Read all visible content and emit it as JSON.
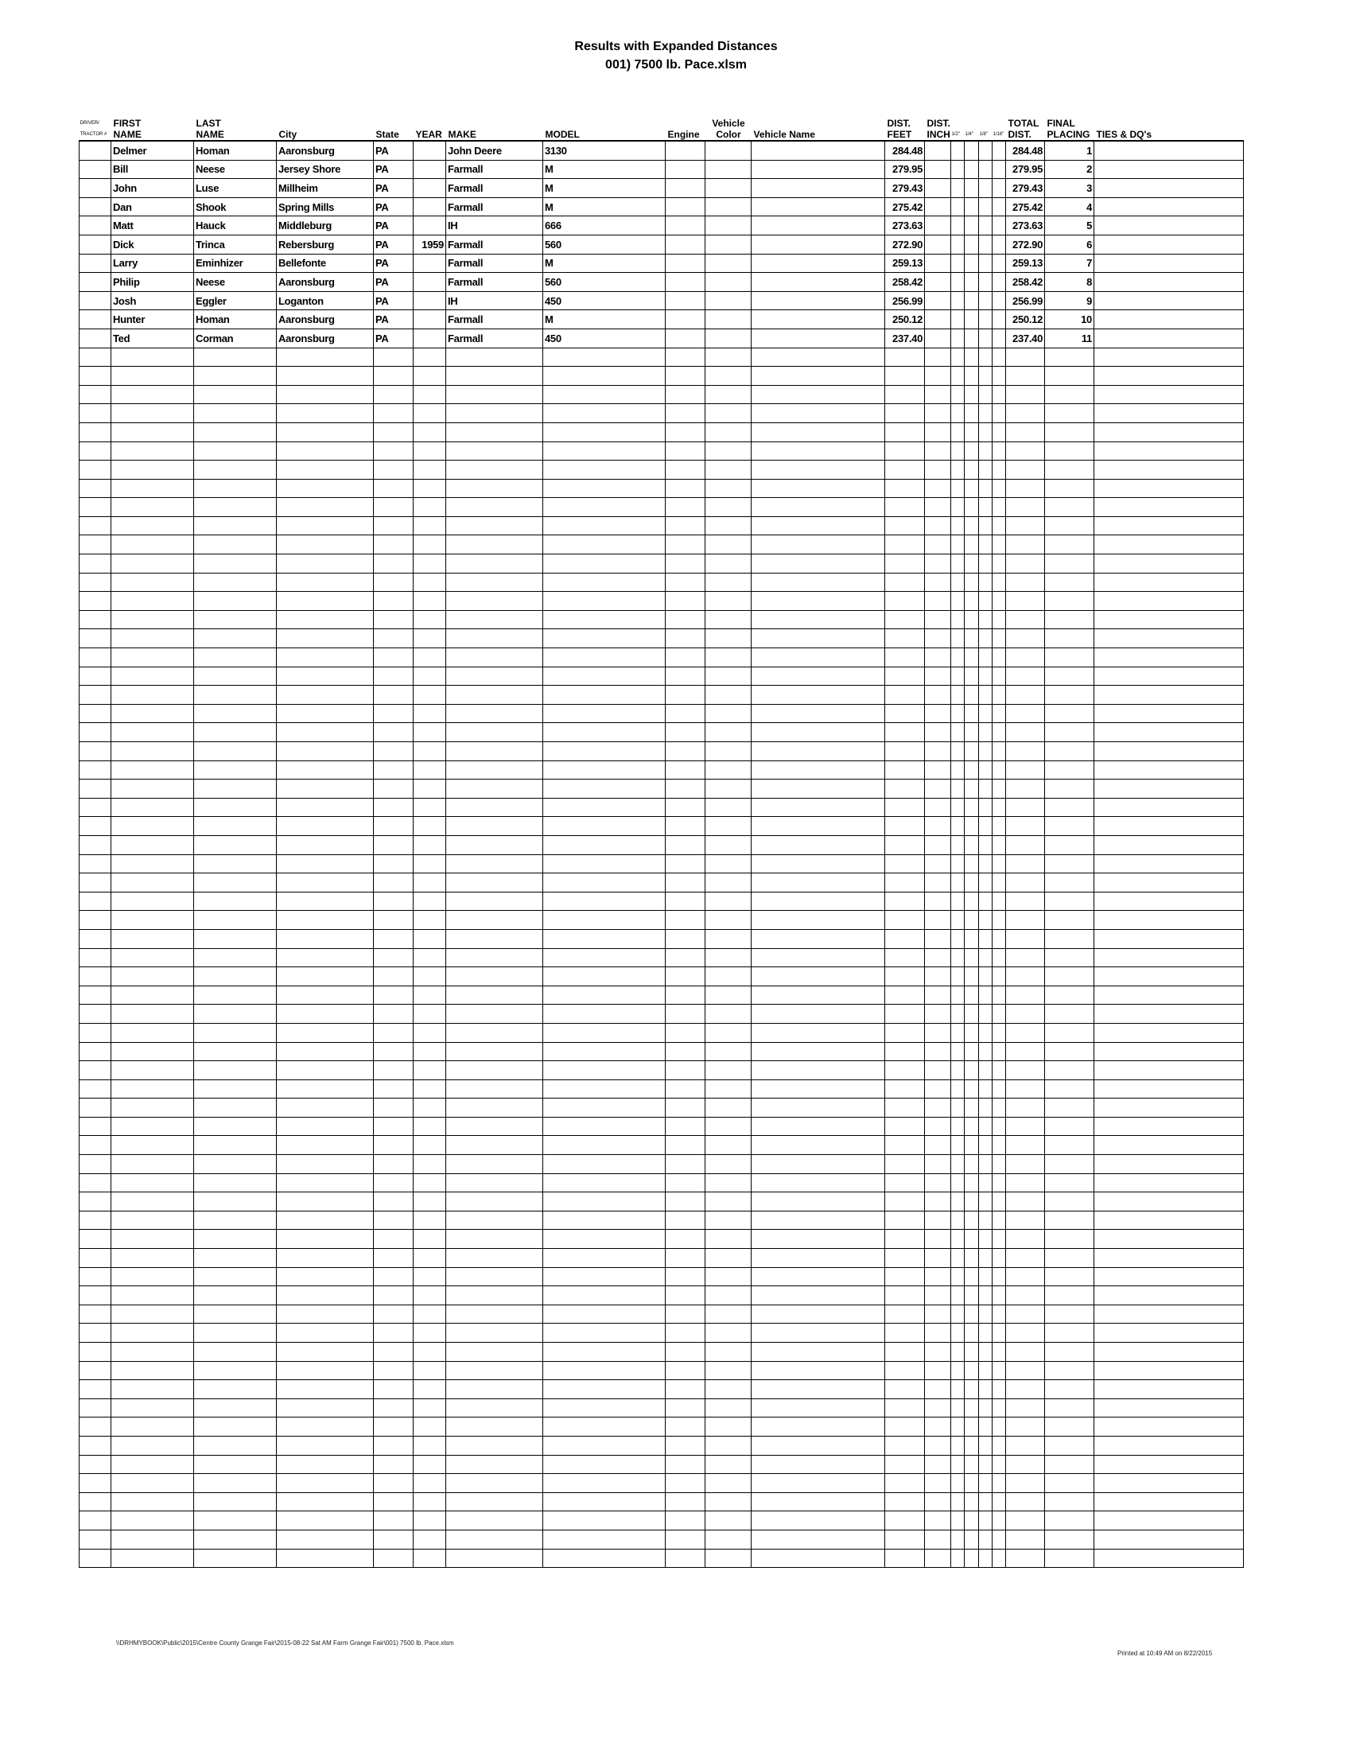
{
  "title": "Results with Expanded Distances",
  "subtitle": "001) 7500 lb. Pace.xlsm",
  "columns": [
    {
      "top": "DRIVER/",
      "bottom": "TRACTOR #",
      "tiny": true
    },
    {
      "top": "FIRST",
      "bottom": "NAME"
    },
    {
      "top": "LAST",
      "bottom": "NAME"
    },
    {
      "top": "",
      "bottom": "City"
    },
    {
      "top": "",
      "bottom": "State"
    },
    {
      "top": "",
      "bottom": "YEAR"
    },
    {
      "top": "",
      "bottom": "MAKE"
    },
    {
      "top": "",
      "bottom": "MODEL"
    },
    {
      "top": "",
      "bottom": "Engine"
    },
    {
      "top": "Vehicle",
      "bottom": "Color",
      "center": true
    },
    {
      "top": "",
      "bottom": "Vehicle Name"
    },
    {
      "top": "DIST.",
      "bottom": "FEET"
    },
    {
      "top": "DIST.",
      "bottom": "INCH"
    },
    {
      "top": "",
      "bottom": "1/2\"",
      "tiny": true
    },
    {
      "top": "",
      "bottom": "1/4\"",
      "tiny": true
    },
    {
      "top": "",
      "bottom": "1/8\"",
      "tiny": true
    },
    {
      "top": "",
      "bottom": "1/16\"",
      "tiny": true
    },
    {
      "top": "TOTAL",
      "bottom": "DIST."
    },
    {
      "top": "FINAL",
      "bottom": "PLACING"
    },
    {
      "top": "",
      "bottom": "TIES & DQ's"
    }
  ],
  "results": [
    [
      "",
      "Delmer",
      "Homan",
      "Aaronsburg",
      "PA",
      "",
      "John Deere",
      "3130",
      "",
      "",
      "",
      "284.48",
      "",
      "",
      "",
      "",
      "",
      "284.48",
      "1",
      ""
    ],
    [
      "",
      "Bill",
      "Neese",
      "Jersey Shore",
      "PA",
      "",
      "Farmall",
      "M",
      "",
      "",
      "",
      "279.95",
      "",
      "",
      "",
      "",
      "",
      "279.95",
      "2",
      ""
    ],
    [
      "",
      "John",
      "Luse",
      "Millheim",
      "PA",
      "",
      "Farmall",
      "M",
      "",
      "",
      "",
      "279.43",
      "",
      "",
      "",
      "",
      "",
      "279.43",
      "3",
      ""
    ],
    [
      "",
      "Dan",
      "Shook",
      "Spring Mills",
      "PA",
      "",
      "Farmall",
      "M",
      "",
      "",
      "",
      "275.42",
      "",
      "",
      "",
      "",
      "",
      "275.42",
      "4",
      ""
    ],
    [
      "",
      "Matt",
      "Hauck",
      "Middleburg",
      "PA",
      "",
      "IH",
      "666",
      "",
      "",
      "",
      "273.63",
      "",
      "",
      "",
      "",
      "",
      "273.63",
      "5",
      ""
    ],
    [
      "",
      "Dick",
      "Trinca",
      "Rebersburg",
      "PA",
      "1959",
      "Farmall",
      "560",
      "",
      "",
      "",
      "272.90",
      "",
      "",
      "",
      "",
      "",
      "272.90",
      "6",
      ""
    ],
    [
      "",
      "Larry",
      "Eminhizer",
      "Bellefonte",
      "PA",
      "",
      "Farmall",
      "M",
      "",
      "",
      "",
      "259.13",
      "",
      "",
      "",
      "",
      "",
      "259.13",
      "7",
      ""
    ],
    [
      "",
      "Philip",
      "Neese",
      "Aaronsburg",
      "PA",
      "",
      "Farmall",
      "560",
      "",
      "",
      "",
      "258.42",
      "",
      "",
      "",
      "",
      "",
      "258.42",
      "8",
      ""
    ],
    [
      "",
      "Josh",
      "Eggler",
      "Loganton",
      "PA",
      "",
      "IH",
      "450",
      "",
      "",
      "",
      "256.99",
      "",
      "",
      "",
      "",
      "",
      "256.99",
      "9",
      ""
    ],
    [
      "",
      "Hunter",
      "Homan",
      "Aaronsburg",
      "PA",
      "",
      "Farmall",
      "M",
      "",
      "",
      "",
      "250.12",
      "",
      "",
      "",
      "",
      "",
      "250.12",
      "10",
      ""
    ],
    [
      "",
      "Ted",
      "Corman",
      "Aaronsburg",
      "PA",
      "",
      "Farmall",
      "450",
      "",
      "",
      "",
      "237.40",
      "",
      "",
      "",
      "",
      "",
      "237.40",
      "11",
      ""
    ]
  ],
  "footer": {
    "path": "\\\\DRHMYBOOK\\Public\\2015\\Centre County Grange Fair\\2015-08-22 Sat AM Farm Grange Fair\\001) 7500 lb. Pace.xlsm",
    "printed": "Printed at 10:49 AM on 8/22/2015"
  }
}
